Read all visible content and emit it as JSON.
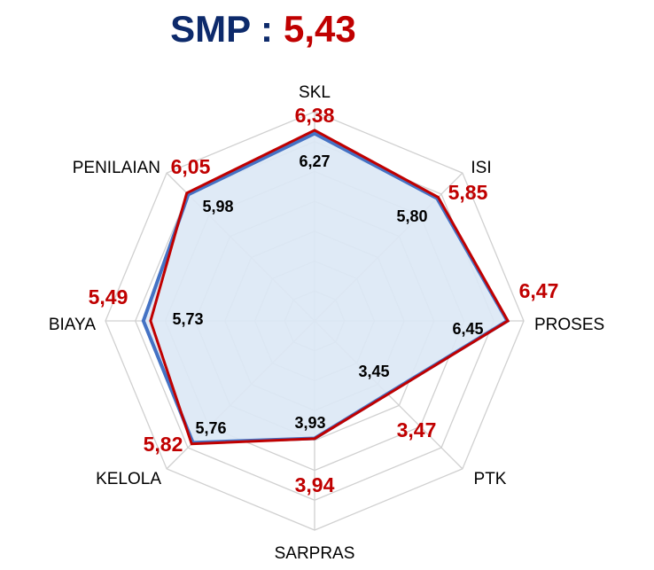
{
  "chart_data": {
    "type": "radar",
    "title": "SMP :",
    "overall": 5.43,
    "overall_label": "5,43",
    "categories": [
      "SKL",
      "ISI",
      "PROSES",
      "PTK",
      "SARPRAS",
      "KELOLA",
      "BIAYA",
      "PENILAIAN"
    ],
    "rlim": [
      0,
      7
    ],
    "rticks": [
      1,
      2,
      3,
      4,
      5,
      6,
      7
    ],
    "grid": true,
    "series": [
      {
        "color": "#4472c4",
        "fill": "#dce8f5",
        "values": [
          6.27,
          5.8,
          6.45,
          3.45,
          3.93,
          5.76,
          5.73,
          5.98
        ],
        "value_labels": [
          "6,27",
          "5,80",
          "6,45",
          "3,45",
          "3,93",
          "5,76",
          "5,73",
          "5,98"
        ]
      },
      {
        "color": "#c00000",
        "values": [
          6.38,
          5.85,
          6.47,
          3.47,
          3.94,
          5.82,
          5.49,
          6.05
        ],
        "value_labels": [
          "6,38",
          "5,85",
          "6,47",
          "3,47",
          "3,94",
          "5,82",
          "5,49",
          "6,05"
        ]
      }
    ]
  }
}
